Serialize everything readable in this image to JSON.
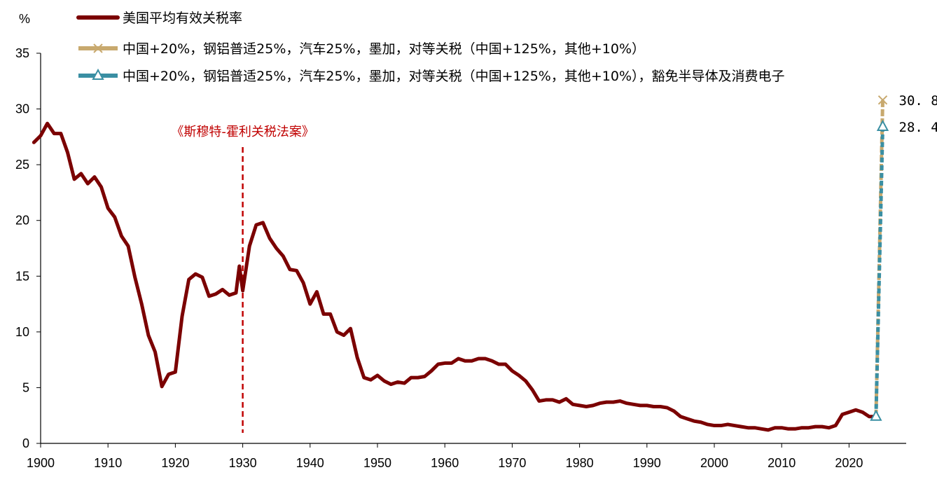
{
  "chart_data": {
    "type": "line",
    "ylabel": "%",
    "xlim": [
      1900,
      2027
    ],
    "ylim": [
      0,
      35
    ],
    "x_ticks": [
      1900,
      1910,
      1920,
      1930,
      1940,
      1950,
      1960,
      1970,
      1980,
      1990,
      2000,
      2010,
      2020
    ],
    "y_ticks": [
      0,
      5,
      10,
      15,
      20,
      25,
      30,
      35
    ],
    "grid": false,
    "legend_position": "top-left",
    "series": [
      {
        "name": "美国平均有效关税率",
        "color": "#7b0000",
        "marker": "none",
        "x": [
          1899,
          1900,
          1901,
          1902,
          1903,
          1904,
          1905,
          1906,
          1907,
          1908,
          1909,
          1910,
          1911,
          1912,
          1913,
          1914,
          1915,
          1916,
          1917,
          1918,
          1919,
          1920,
          1921,
          1922,
          1923,
          1924,
          1925,
          1926,
          1927,
          1928,
          1929,
          1929.5,
          1930,
          1931,
          1932,
          1933,
          1934,
          1935,
          1936,
          1937,
          1938,
          1939,
          1940,
          1941,
          1942,
          1943,
          1944,
          1945,
          1946,
          1947,
          1948,
          1949,
          1950,
          1951,
          1952,
          1953,
          1954,
          1955,
          1956,
          1957,
          1958,
          1959,
          1960,
          1961,
          1962,
          1963,
          1964,
          1965,
          1966,
          1967,
          1968,
          1969,
          1970,
          1971,
          1972,
          1973,
          1974,
          1975,
          1976,
          1977,
          1978,
          1979,
          1980,
          1981,
          1982,
          1983,
          1984,
          1985,
          1986,
          1987,
          1988,
          1989,
          1990,
          1991,
          1992,
          1993,
          1994,
          1995,
          1996,
          1997,
          1998,
          1999,
          2000,
          2001,
          2002,
          2003,
          2004,
          2005,
          2006,
          2007,
          2008,
          2009,
          2010,
          2011,
          2012,
          2013,
          2014,
          2015,
          2016,
          2017,
          2018,
          2019,
          2020,
          2021,
          2022,
          2023,
          2024
        ],
        "y": [
          27.0,
          27.6,
          28.7,
          27.8,
          27.8,
          26.1,
          23.7,
          24.2,
          23.3,
          23.9,
          23.0,
          21.1,
          20.3,
          18.6,
          17.7,
          14.9,
          12.5,
          9.7,
          8.2,
          5.1,
          6.2,
          6.4,
          11.4,
          14.7,
          15.2,
          14.9,
          13.2,
          13.4,
          13.8,
          13.3,
          13.5,
          15.9,
          13.7,
          17.7,
          19.6,
          19.8,
          18.4,
          17.5,
          16.8,
          15.6,
          15.5,
          14.4,
          12.5,
          13.6,
          11.6,
          11.6,
          10.0,
          9.7,
          10.3,
          7.7,
          5.9,
          5.7,
          6.1,
          5.6,
          5.3,
          5.5,
          5.4,
          5.9,
          5.9,
          6.0,
          6.5,
          7.1,
          7.2,
          7.2,
          7.6,
          7.4,
          7.4,
          7.6,
          7.6,
          7.4,
          7.1,
          7.1,
          6.5,
          6.1,
          5.6,
          4.8,
          3.8,
          3.9,
          3.9,
          3.7,
          4.0,
          3.5,
          3.4,
          3.3,
          3.4,
          3.6,
          3.7,
          3.7,
          3.8,
          3.6,
          3.5,
          3.4,
          3.4,
          3.3,
          3.3,
          3.2,
          2.9,
          2.4,
          2.2,
          2.0,
          1.9,
          1.7,
          1.6,
          1.6,
          1.7,
          1.6,
          1.5,
          1.4,
          1.4,
          1.3,
          1.2,
          1.4,
          1.4,
          1.3,
          1.3,
          1.4,
          1.4,
          1.5,
          1.5,
          1.4,
          1.6,
          2.6,
          2.8,
          3.0,
          2.8,
          2.4,
          2.4
        ]
      },
      {
        "name": "中国+20%，钢铝普适25%，汽车25%，墨加，对等关税（中国+125%，其他+10%）",
        "color": "#c8a96e",
        "marker": "x",
        "x": [
          2024,
          2025
        ],
        "y": [
          2.4,
          30.8
        ]
      },
      {
        "name": "中国+20%，钢铝普适25%，汽车25%，墨加，对等关税（中国+125%，其他+10%），豁免半导体及消费电子",
        "color": "#3a8fa3",
        "marker": "triangle",
        "x": [
          2024,
          2025
        ],
        "y": [
          2.4,
          28.4
        ]
      }
    ],
    "annotations": [
      {
        "text": "《斯穆特-霍利关税法案》",
        "x": 1930,
        "style": "vertical-dashed-line",
        "color": "#c00000"
      }
    ],
    "end_labels": [
      {
        "text": "30.8",
        "x": 2025,
        "y": 30.8
      },
      {
        "text": "28.4",
        "x": 2025,
        "y": 28.4
      }
    ]
  }
}
